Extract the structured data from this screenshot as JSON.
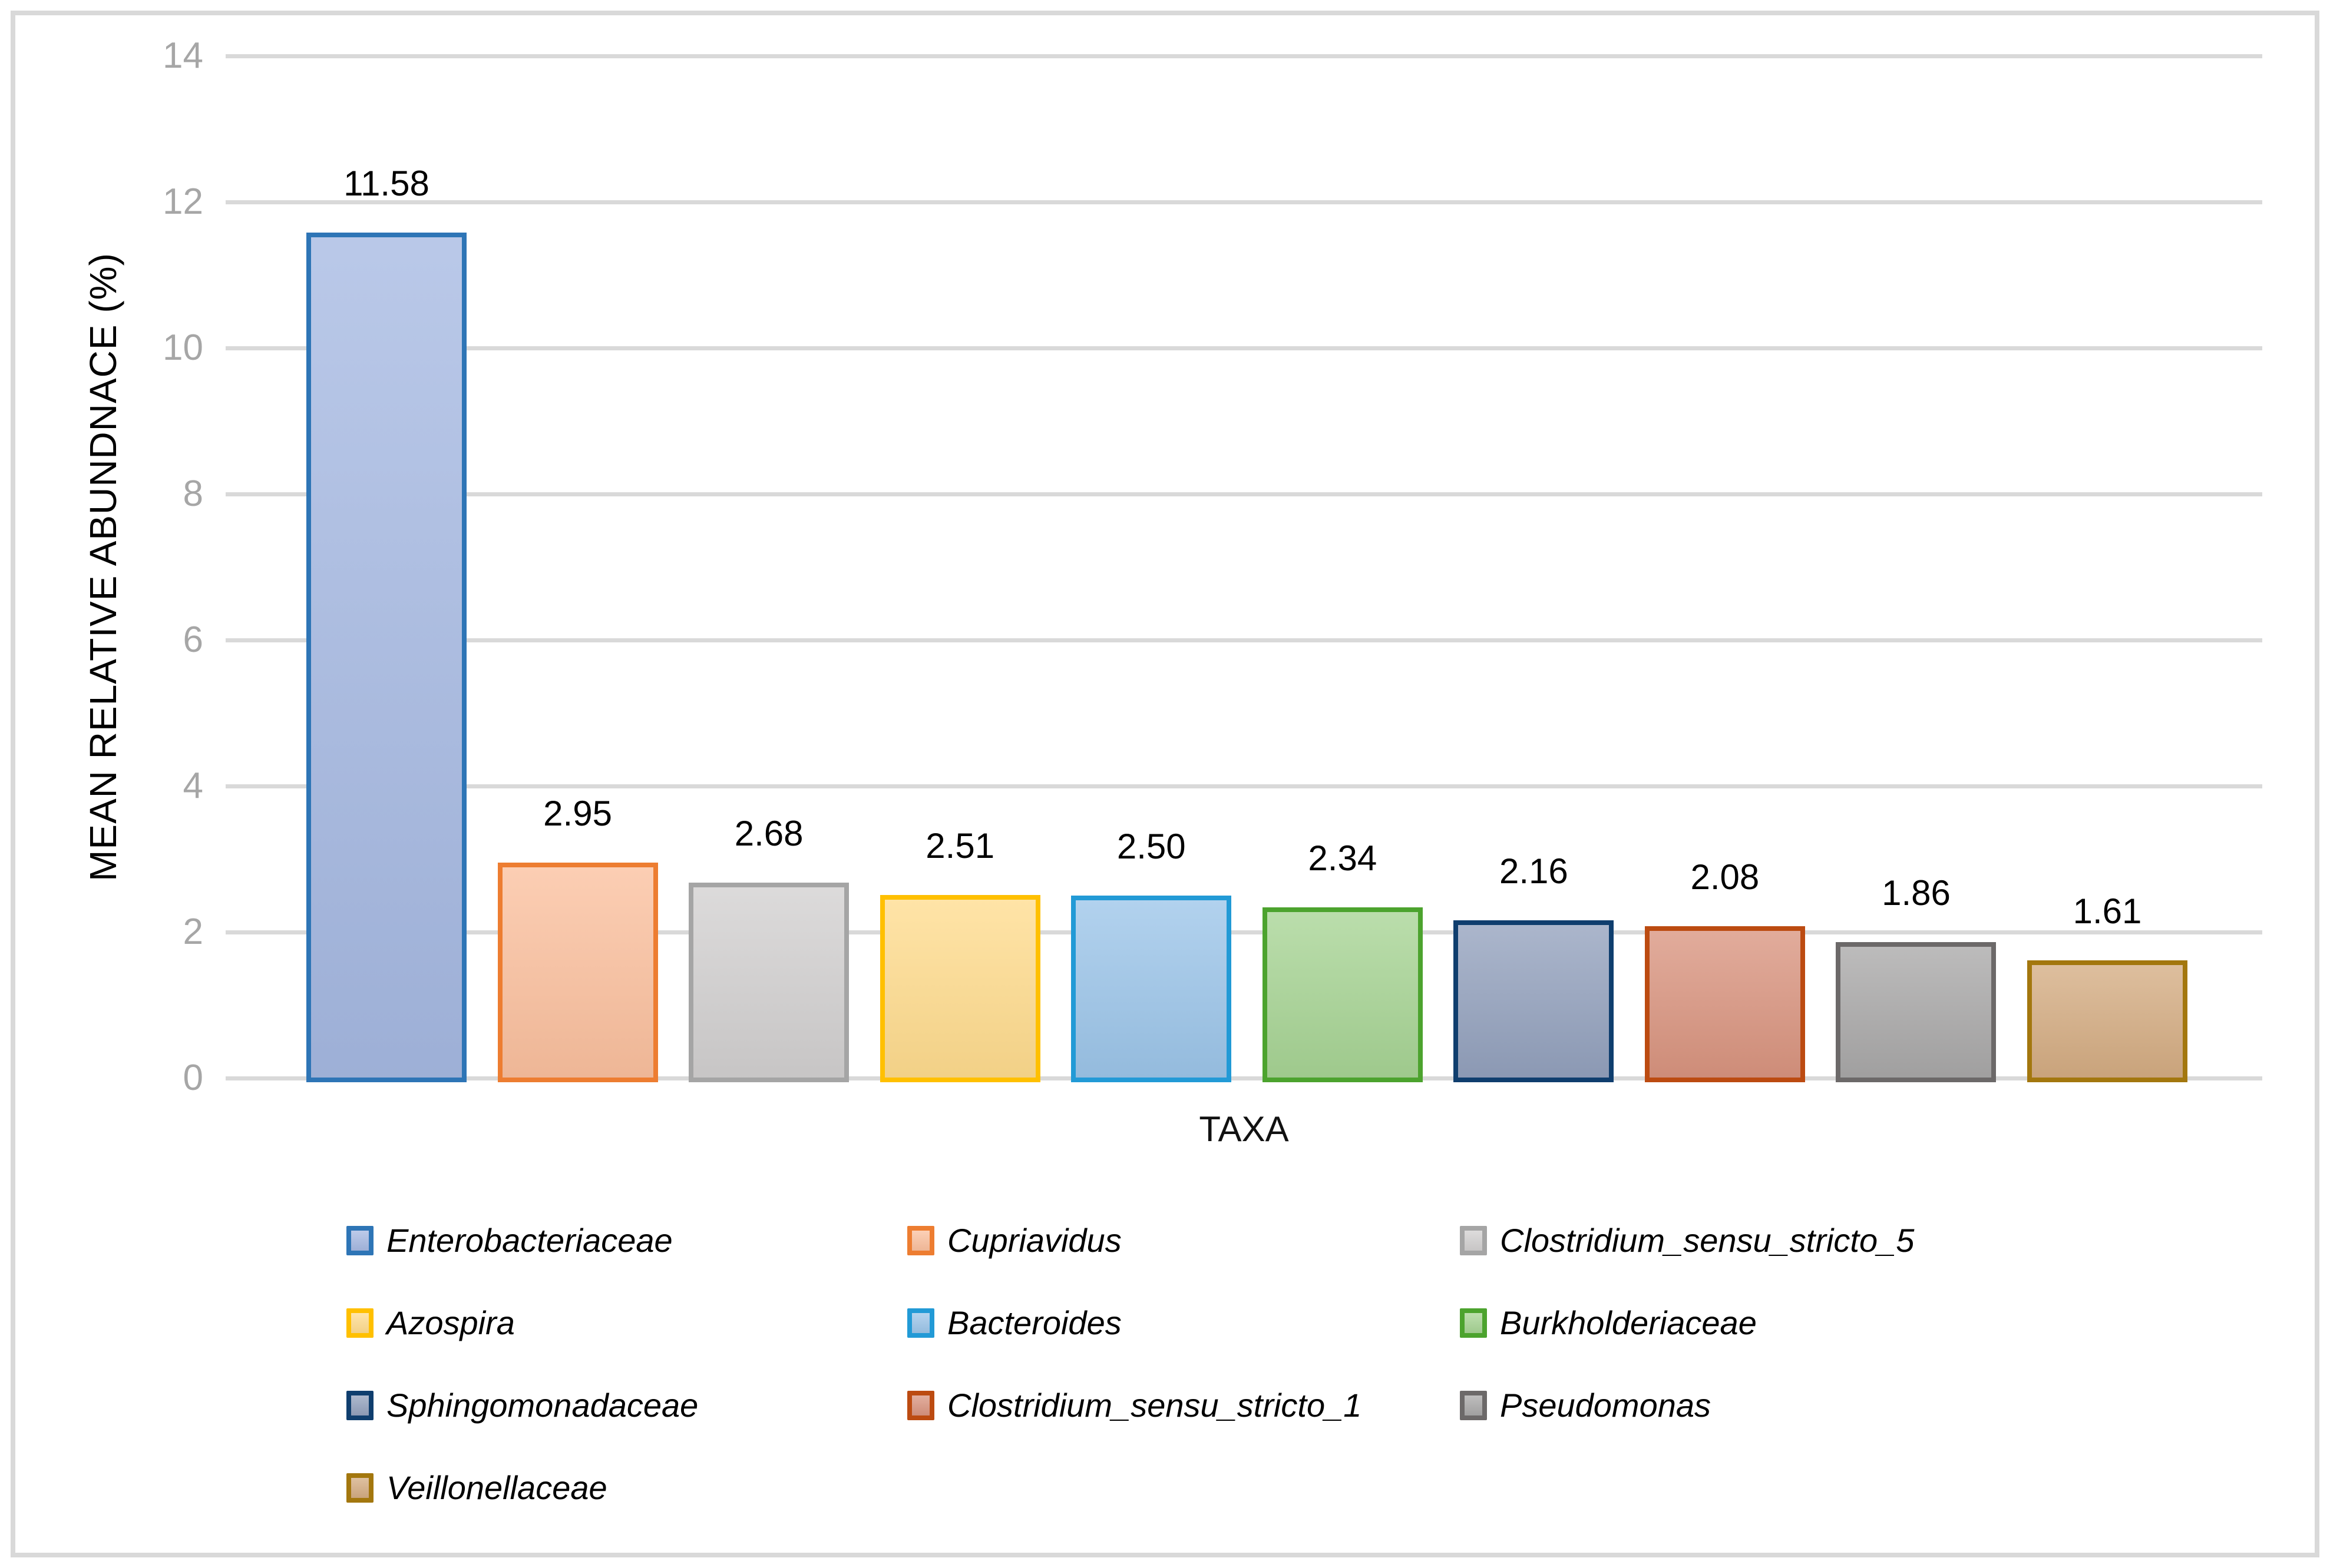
{
  "chart_data": {
    "type": "bar",
    "title": "",
    "xlabel": "TAXA",
    "ylabel": "MEAN RELATIVE ABUNDNACE (%)",
    "ylim": [
      0,
      14
    ],
    "yticks": [
      0,
      2,
      4,
      6,
      8,
      10,
      12,
      14
    ],
    "grid": "horizontal",
    "legend_position": "bottom",
    "categories": [
      "Enterobacteriaceae",
      "Cupriavidus",
      "Clostridium_sensu_stricto_5",
      "Azospira",
      "Bacteroides",
      "Burkholderiaceae",
      "Sphingomonadaceae",
      "Clostridium_sensu_stricto_1",
      "Pseudomonas",
      "Veillonellaceae"
    ],
    "series": [
      {
        "name": "Enterobacteriaceae",
        "value": 11.58,
        "label": "11.58",
        "fill": "#A6B9E2",
        "border": "#2E75B6"
      },
      {
        "name": "Cupriavidus",
        "value": 2.95,
        "label": "2.95",
        "fill": "#FBC09E",
        "border": "#ED7D31"
      },
      {
        "name": "Clostridium_sensu_stricto_5",
        "value": 2.68,
        "label": "2.68",
        "fill": "#D2D0D0",
        "border": "#A5A5A5"
      },
      {
        "name": "Azospira",
        "value": 2.51,
        "label": "2.51",
        "fill": "#FFDC8E",
        "border": "#FFC000"
      },
      {
        "name": "Bacteroides",
        "value": 2.5,
        "label": "2.50",
        "fill": "#9CC5E9",
        "border": "#229AD6"
      },
      {
        "name": "Burkholderiaceae",
        "value": 2.34,
        "label": "2.34",
        "fill": "#A7D494",
        "border": "#4CA32E"
      },
      {
        "name": "Sphingomonadaceae",
        "value": 2.16,
        "label": "2.16",
        "fill": "#93A1BD",
        "border": "#0F3E6E"
      },
      {
        "name": "Clostridium_sensu_stricto_1",
        "value": 2.08,
        "label": "2.08",
        "fill": "#D9947F",
        "border": "#BC4B11"
      },
      {
        "name": "Pseudomonas",
        "value": 1.86,
        "label": "1.86",
        "fill": "#A9A8A8",
        "border": "#6C6969"
      },
      {
        "name": "Veillonellaceae",
        "value": 1.61,
        "label": "1.61",
        "fill": "#D4AC82",
        "border": "#A3770E"
      }
    ],
    "colors": {
      "gridline": "#D9D9D9",
      "frame": "#D9D9D9",
      "tick_label": "#A6A6A6",
      "value_label": "#000000",
      "axis_title": "#000000"
    }
  }
}
